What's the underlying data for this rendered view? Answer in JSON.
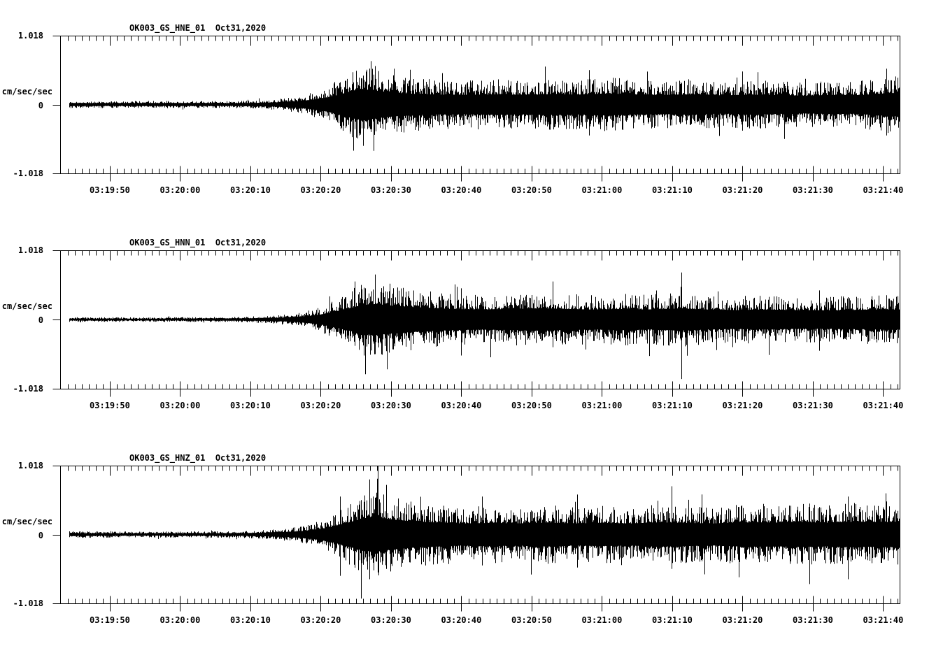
{
  "page": {
    "background": "#ffffff",
    "ink": "#000000",
    "description": "Three-channel strong-motion seismogram record display"
  },
  "chart_data": [
    {
      "type": "line",
      "chart_kind": "seismogram",
      "title": "OK003_GS_HNE_01  Oct31,2020",
      "station": "OK003",
      "network": "GS",
      "channel": "HNE",
      "location": "01",
      "date": "Oct31,2020",
      "ylabel": "cm/sec/sec",
      "ylim": [
        -1.018,
        1.018
      ],
      "yticks": [
        "1.018",
        "0",
        "-1.018"
      ],
      "xticks": [
        "03:19:50",
        "03:20:00",
        "03:20:10",
        "03:20:20",
        "03:20:30",
        "03:20:40",
        "03:20:50",
        "03:21:00",
        "03:21:10",
        "03:21:20",
        "03:21:30",
        "03:21:40"
      ],
      "x_start_time": "03:19:43",
      "x_end_time": "03:21:42",
      "major_tick_seconds": 10,
      "minor_tick_seconds": 1,
      "grid": false,
      "legend": false,
      "envelope_fraction_of_fullscale": [
        [
          1.3,
          0.055
        ],
        [
          8,
          0.05
        ],
        [
          16,
          0.055
        ],
        [
          24,
          0.05
        ],
        [
          28,
          0.06
        ],
        [
          31,
          0.08
        ],
        [
          34,
          0.12
        ],
        [
          36,
          0.18
        ],
        [
          38,
          0.26
        ],
        [
          40,
          0.38
        ],
        [
          41.5,
          0.5
        ],
        [
          43,
          0.56
        ],
        [
          44.5,
          0.52
        ],
        [
          46,
          0.46
        ],
        [
          48,
          0.42
        ],
        [
          51,
          0.38
        ],
        [
          54,
          0.36
        ],
        [
          58,
          0.35
        ],
        [
          62,
          0.37
        ],
        [
          66,
          0.35
        ],
        [
          70,
          0.38
        ],
        [
          74,
          0.36
        ],
        [
          78,
          0.4
        ],
        [
          82,
          0.36
        ],
        [
          86,
          0.35
        ],
        [
          90,
          0.37
        ],
        [
          94,
          0.33
        ],
        [
          98,
          0.36
        ],
        [
          102,
          0.34
        ],
        [
          106,
          0.32
        ],
        [
          110,
          0.35
        ],
        [
          113,
          0.33
        ],
        [
          116,
          0.38
        ],
        [
          118,
          0.42
        ],
        [
          119.4,
          0.4
        ]
      ],
      "notable_spikes_t_up_down": [
        [
          41.7,
          0.3,
          0.67
        ],
        [
          43.1,
          0.42,
          0.6
        ],
        [
          44.2,
          0.63,
          0.4
        ],
        [
          47.5,
          0.52,
          0.35
        ],
        [
          69,
          0.55,
          0.3
        ],
        [
          75.2,
          0.5,
          0.45
        ],
        [
          97,
          0.48,
          0.38
        ],
        [
          103,
          0.3,
          0.5
        ],
        [
          117.5,
          0.52,
          0.45
        ]
      ]
    },
    {
      "type": "line",
      "chart_kind": "seismogram",
      "title": "OK003_GS_HNN_01  Oct31,2020",
      "station": "OK003",
      "network": "GS",
      "channel": "HNN",
      "location": "01",
      "date": "Oct31,2020",
      "ylabel": "cm/sec/sec",
      "ylim": [
        -1.018,
        1.018
      ],
      "yticks": [
        "1.018",
        "0",
        "-1.018"
      ],
      "xticks": [
        "03:19:50",
        "03:20:00",
        "03:20:10",
        "03:20:20",
        "03:20:30",
        "03:20:40",
        "03:20:50",
        "03:21:00",
        "03:21:10",
        "03:21:20",
        "03:21:30",
        "03:21:40"
      ],
      "x_start_time": "03:19:43",
      "x_end_time": "03:21:42",
      "major_tick_seconds": 10,
      "minor_tick_seconds": 1,
      "grid": false,
      "legend": false,
      "envelope_fraction_of_fullscale": [
        [
          1.3,
          0.035
        ],
        [
          10,
          0.032
        ],
        [
          20,
          0.036
        ],
        [
          26,
          0.04
        ],
        [
          30,
          0.055
        ],
        [
          33,
          0.08
        ],
        [
          35,
          0.12
        ],
        [
          37,
          0.18
        ],
        [
          39,
          0.28
        ],
        [
          41,
          0.4
        ],
        [
          43,
          0.52
        ],
        [
          45,
          0.56
        ],
        [
          47,
          0.5
        ],
        [
          49,
          0.46
        ],
        [
          52,
          0.42
        ],
        [
          56,
          0.38
        ],
        [
          60,
          0.36
        ],
        [
          64,
          0.38
        ],
        [
          68,
          0.4
        ],
        [
          72,
          0.38
        ],
        [
          76,
          0.36
        ],
        [
          80,
          0.38
        ],
        [
          84,
          0.36
        ],
        [
          88,
          0.4
        ],
        [
          92,
          0.36
        ],
        [
          96,
          0.34
        ],
        [
          100,
          0.36
        ],
        [
          104,
          0.34
        ],
        [
          108,
          0.33
        ],
        [
          112,
          0.34
        ],
        [
          116,
          0.36
        ],
        [
          119.4,
          0.36
        ]
      ],
      "notable_spikes_t_up_down": [
        [
          41.9,
          0.55,
          0.38
        ],
        [
          43.4,
          0.45,
          0.79
        ],
        [
          44.8,
          0.65,
          0.5
        ],
        [
          46.5,
          0.4,
          0.72
        ],
        [
          57,
          0.45,
          0.52
        ],
        [
          70,
          0.55,
          0.4
        ],
        [
          88.4,
          0.68,
          0.86
        ],
        [
          108,
          0.42,
          0.45
        ]
      ]
    },
    {
      "type": "line",
      "chart_kind": "seismogram",
      "title": "OK003_GS_HNZ_01  Oct31,2020",
      "station": "OK003",
      "network": "GS",
      "channel": "HNZ",
      "location": "01",
      "date": "Oct31,2020",
      "ylabel": "cm/sec/sec",
      "ylim": [
        -1.018,
        1.018
      ],
      "yticks": [
        "1.018",
        "0",
        "-1.018"
      ],
      "xticks": [
        "03:19:50",
        "03:20:00",
        "03:20:10",
        "03:20:20",
        "03:20:30",
        "03:20:40",
        "03:20:50",
        "03:21:00",
        "03:21:10",
        "03:21:20",
        "03:21:30",
        "03:21:40"
      ],
      "x_start_time": "03:19:43",
      "x_end_time": "03:21:42",
      "major_tick_seconds": 10,
      "minor_tick_seconds": 1,
      "grid": false,
      "legend": false,
      "envelope_fraction_of_fullscale": [
        [
          1.3,
          0.05
        ],
        [
          10,
          0.042
        ],
        [
          18,
          0.045
        ],
        [
          26,
          0.05
        ],
        [
          30,
          0.07
        ],
        [
          33,
          0.1
        ],
        [
          35,
          0.14
        ],
        [
          37,
          0.2
        ],
        [
          39,
          0.3
        ],
        [
          41,
          0.44
        ],
        [
          43,
          0.58
        ],
        [
          45,
          0.62
        ],
        [
          47,
          0.55
        ],
        [
          50,
          0.48
        ],
        [
          53,
          0.44
        ],
        [
          57,
          0.4
        ],
        [
          61,
          0.42
        ],
        [
          65,
          0.4
        ],
        [
          69,
          0.43
        ],
        [
          73,
          0.4
        ],
        [
          77,
          0.42
        ],
        [
          81,
          0.4
        ],
        [
          85,
          0.44
        ],
        [
          89,
          0.42
        ],
        [
          93,
          0.4
        ],
        [
          97,
          0.44
        ],
        [
          101,
          0.42
        ],
        [
          105,
          0.45
        ],
        [
          109,
          0.43
        ],
        [
          113,
          0.46
        ],
        [
          116,
          0.44
        ],
        [
          119.4,
          0.46
        ]
      ],
      "notable_spikes_t_up_down": [
        [
          39.8,
          0.55,
          0.6
        ],
        [
          42.8,
          0.5,
          0.93
        ],
        [
          44.0,
          0.8,
          0.65
        ],
        [
          45.2,
          1.0,
          0.55
        ],
        [
          46.4,
          0.72,
          0.5
        ],
        [
          60,
          0.55,
          0.45
        ],
        [
          73.5,
          0.58,
          0.48
        ],
        [
          87,
          0.7,
          0.5
        ],
        [
          96.5,
          0.4,
          0.62
        ],
        [
          106.6,
          0.45,
          0.72
        ],
        [
          112,
          0.55,
          0.65
        ]
      ]
    }
  ]
}
